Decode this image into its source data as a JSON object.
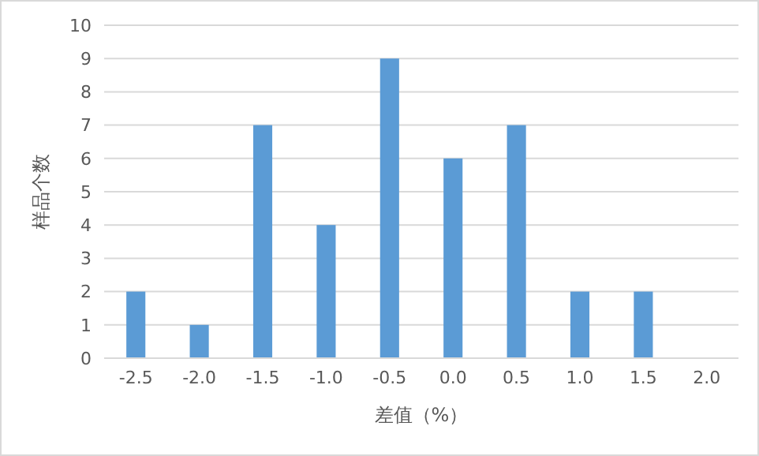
{
  "chart_data": {
    "type": "bar",
    "xlabel": "差值（%）",
    "ylabel": "样品个数",
    "categories": [
      "-2.5",
      "-2.0",
      "-1.5",
      "-1.0",
      "-0.5",
      "0.0",
      "0.5",
      "1.0",
      "1.5",
      "2.0"
    ],
    "values": [
      2,
      1,
      7,
      4,
      9,
      6,
      7,
      2,
      2,
      0
    ],
    "color": "#5b9bd5",
    "ylim": [
      0,
      10
    ],
    "yticks": [
      0,
      1,
      2,
      3,
      4,
      5,
      6,
      7,
      8,
      9,
      10
    ],
    "grid": "y"
  }
}
